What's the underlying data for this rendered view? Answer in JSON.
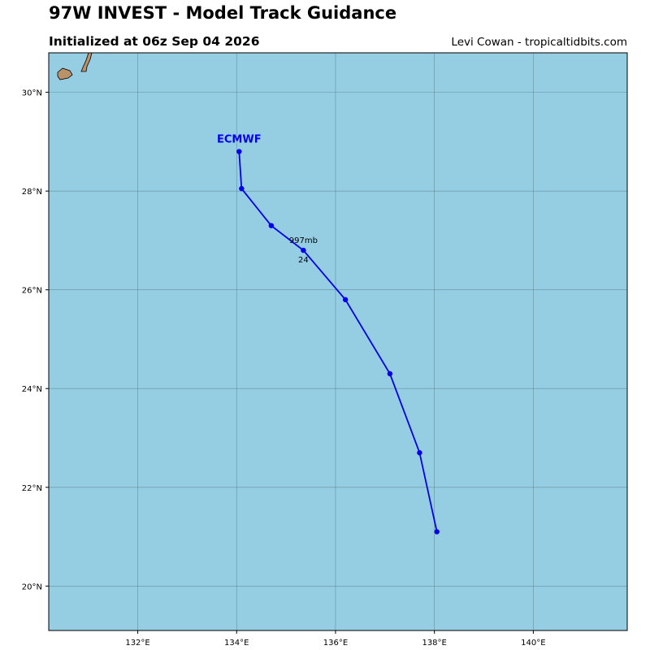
{
  "header": {
    "title": "97W INVEST - Model Track Guidance",
    "subtitle": "Initialized at 06z Sep 04 2026",
    "credit": "Levi Cowan - tropicaltidbits.com"
  },
  "map": {
    "ocean_color": "#95cde3",
    "land_color": "#b9926a",
    "grid_color": "#5a7f8c",
    "lon_range": [
      130.2,
      141.9
    ],
    "lat_range": [
      19.1,
      30.8
    ],
    "lon_ticks": [
      132,
      134,
      136,
      138,
      140
    ],
    "lon_tick_labels": [
      "132°E",
      "134°E",
      "136°E",
      "138°E",
      "140°E"
    ],
    "lat_ticks": [
      20,
      22,
      24,
      26,
      28,
      30
    ],
    "lat_tick_labels": [
      "20°N",
      "22°N",
      "24°N",
      "26°N",
      "28°N",
      "30°N"
    ]
  },
  "tracks": [
    {
      "name": "ECMWF",
      "color": "#0000ee",
      "points": [
        {
          "lon": 138.05,
          "lat": 21.1
        },
        {
          "lon": 137.7,
          "lat": 22.7
        },
        {
          "lon": 137.1,
          "lat": 24.3
        },
        {
          "lon": 136.2,
          "lat": 25.8
        },
        {
          "lon": 135.35,
          "lat": 26.8
        },
        {
          "lon": 134.7,
          "lat": 27.3
        },
        {
          "lon": 134.1,
          "lat": 28.05
        },
        {
          "lon": 134.05,
          "lat": 28.8
        }
      ],
      "annotation": {
        "pressure": "997mb",
        "hour": "24",
        "lon": 135.35,
        "lat": 26.8
      }
    }
  ]
}
